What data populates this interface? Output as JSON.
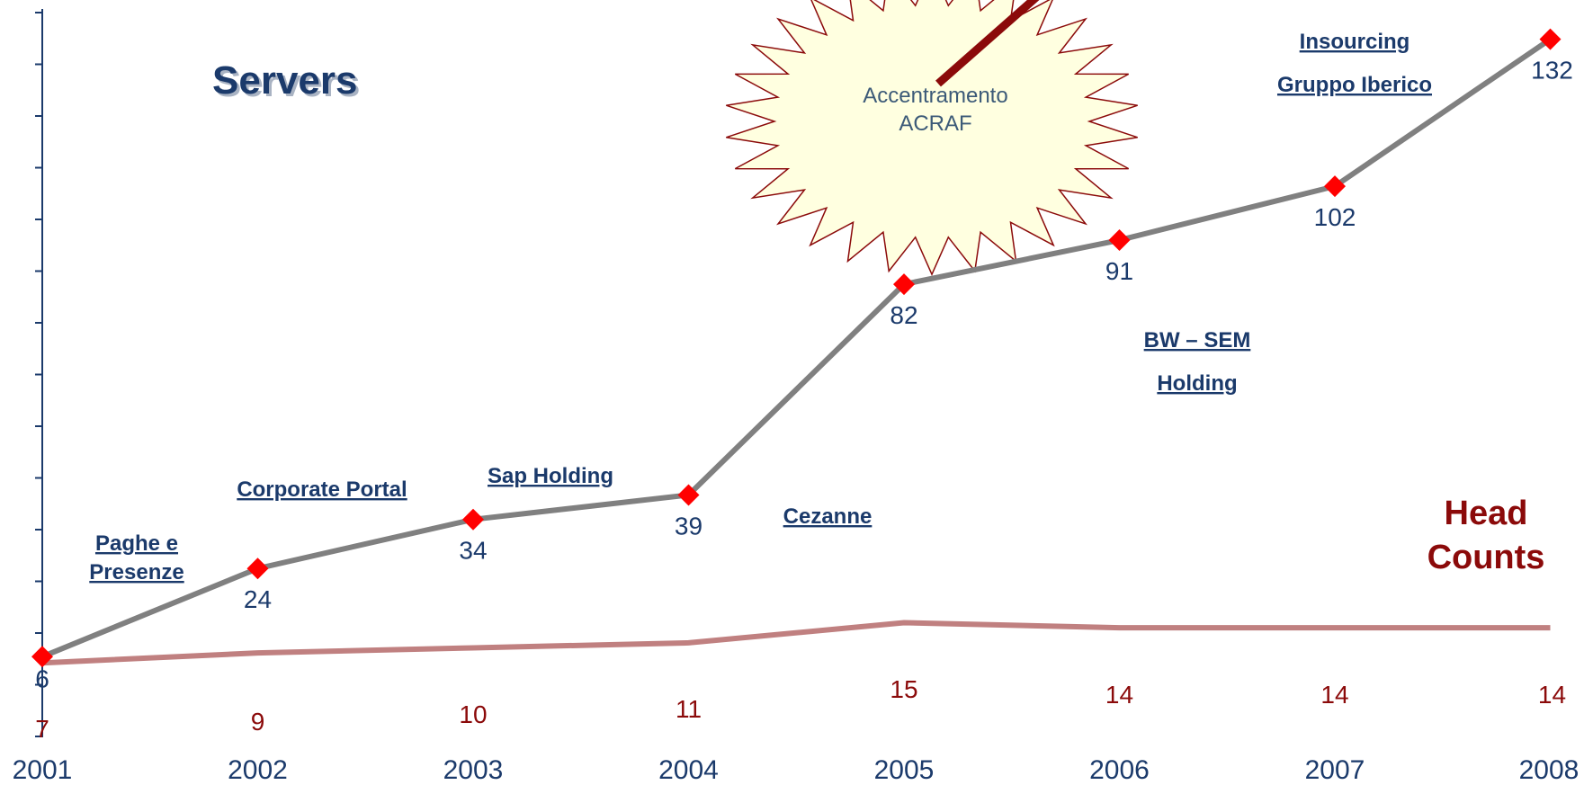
{
  "chart_data": {
    "type": "line",
    "categories": [
      "2001",
      "2002",
      "2003",
      "2004",
      "2005",
      "2006",
      "2007",
      "2008"
    ],
    "series": [
      {
        "name": "Servers",
        "values": [
          6,
          24,
          34,
          39,
          82,
          91,
          102,
          132
        ],
        "color": "#808080",
        "marker_color": "#ff0000"
      },
      {
        "name": "Head Counts",
        "values": [
          7,
          9,
          10,
          11,
          15,
          14,
          14,
          14
        ],
        "color": "#c08080"
      }
    ],
    "servers_title": "Servers",
    "head_counts_title": [
      "Head",
      "Counts"
    ],
    "annotations": [
      {
        "lines": [
          "Paghe e",
          "Presenze"
        ]
      },
      {
        "lines": [
          "Corporate Portal"
        ]
      },
      {
        "lines": [
          "Sap Holding"
        ]
      },
      {
        "lines": [
          "Cezanne"
        ]
      },
      {
        "lines": [
          "BW – SEM",
          "Holding"
        ]
      },
      {
        "lines": [
          "Insourcing",
          "Gruppo Iberico"
        ]
      }
    ],
    "burst": {
      "lines": [
        "Accentramento",
        "ACRAF"
      ],
      "fill": "#ffffe0",
      "stroke": "#8b0a0a"
    },
    "grid": false
  }
}
